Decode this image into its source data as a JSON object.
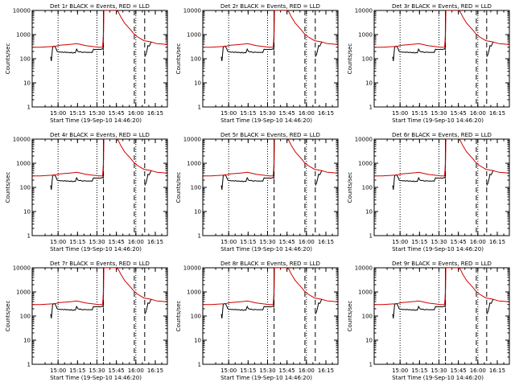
{
  "chart_data": [
    {
      "type": "line",
      "title": "Det 1r BLACK = Events, RED = LLD"
    },
    {
      "type": "line",
      "title": "Det 2r BLACK = Events, RED = LLD"
    },
    {
      "type": "line",
      "title": "Det 3r BLACK = Events, RED = LLD"
    },
    {
      "type": "line",
      "title": "Det 4r BLACK = Events, RED = LLD"
    },
    {
      "type": "line",
      "title": "Det 5r BLACK = Events, RED = LLD"
    },
    {
      "type": "line",
      "title": "Det 6r BLACK = Events, RED = LLD"
    },
    {
      "type": "line",
      "title": "Det 7r BLACK = Events, RED = LLD"
    },
    {
      "type": "line",
      "title": "Det 8r BLACK = Events, RED = LLD"
    },
    {
      "type": "line",
      "title": "Det 9r BLACK = Events, RED = LLD"
    }
  ],
  "shared": {
    "ylabel": "Counts/sec",
    "xlabel": "Start Time (19-Sep-10 14:46:20)",
    "y_scale": "log",
    "ylim": [
      1,
      10000
    ],
    "y_ticks": [
      1,
      10,
      100,
      1000,
      10000
    ],
    "y_tick_labels": [
      "1",
      "10",
      "100",
      "1000",
      "10000"
    ],
    "xlim_min": [
      -6.3,
      98
    ],
    "x_ticks_min": [
      13.67,
      28.67,
      43.67,
      58.67,
      73.67,
      88.67
    ],
    "x_tick_labels": [
      "15:00",
      "15:15",
      "15:30",
      "15:45",
      "16:00",
      "16:15"
    ],
    "dotted_lines_min": [
      13.67,
      43.67,
      73.67
    ],
    "dashed_lines_min": [
      48.7,
      72.5,
      80.5
    ],
    "colors": {
      "events": "#000000",
      "lld": "#d00000"
    },
    "series": [
      {
        "name": "Events",
        "color": "#000000",
        "segments": [
          {
            "x": [
              8.0,
              8.5,
              9.5,
              10.5,
              11.0,
              12.0,
              13.0,
              14.0,
              15.0,
              16.0,
              17.0,
              18.0,
              19.0,
              20.0,
              21.0,
              22.0,
              23.0,
              24.0,
              25.0,
              26.0,
              27.0,
              28.0,
              29.0,
              30.0,
              31.0,
              32.0,
              33.0,
              34.0,
              35.0,
              36.0,
              37.0,
              38.0,
              39.0,
              40.0,
              41.0,
              42.0,
              43.0,
              44.0,
              45.0,
              46.0,
              47.0,
              48.0,
              48.5,
              48.7
            ],
            "y": [
              120,
              80,
              300,
              330,
              330,
              270,
              200,
              190,
              190,
              185,
              190,
              180,
              190,
              180,
              185,
              180,
              175,
              185,
              170,
              180,
              175,
              250,
              200,
              190,
              195,
              185,
              180,
              190,
              185,
              180,
              185,
              180,
              185,
              180,
              250,
              240,
              245,
              240,
              245,
              240,
              245,
              260,
              240,
              10000
            ]
          },
          {
            "x": [
              80.5,
              81.5,
              82.5,
              83.0,
              84.0,
              84.5,
              85.0,
              85.5
            ],
            "y": [
              120,
              150,
              250,
              350,
              330,
              380,
              440,
              500
            ]
          }
        ]
      },
      {
        "name": "LLD",
        "color": "#d00000",
        "x": [
          -6.3,
          0,
          5,
          10,
          12,
          15,
          20,
          25,
          28,
          30,
          35,
          40,
          45,
          48,
          48.7,
          49,
          50,
          52,
          55,
          58,
          60,
          62,
          65,
          70,
          72,
          75,
          80,
          85,
          90,
          95,
          98
        ],
        "y": [
          300,
          300,
          310,
          320,
          330,
          360,
          380,
          400,
          420,
          400,
          350,
          320,
          300,
          300,
          1000,
          10000,
          10000,
          10000,
          10000,
          10000,
          9000,
          5500,
          3000,
          1500,
          1100,
          800,
          560,
          500,
          420,
          400,
          380
        ]
      }
    ]
  }
}
